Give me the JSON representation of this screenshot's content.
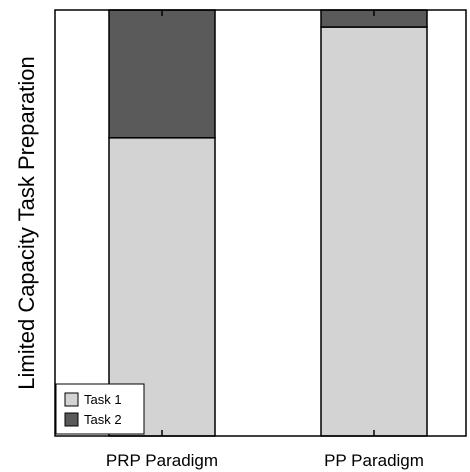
{
  "chart_data": {
    "type": "bar",
    "stacked": true,
    "ylabel": "Limited Capacity Task Preparation",
    "xlabel": "",
    "title": "",
    "categories": [
      "PRP Paradigm",
      "PP Paradigm"
    ],
    "ylim": [
      0,
      1
    ],
    "series": [
      {
        "name": "Task 1",
        "values": [
          0.7,
          0.96
        ],
        "color": "#d3d3d3"
      },
      {
        "name": "Task 2",
        "values": [
          0.3,
          0.04
        ],
        "color": "#5a5a5a"
      }
    ],
    "legend": "bottom-left",
    "grid": false
  }
}
